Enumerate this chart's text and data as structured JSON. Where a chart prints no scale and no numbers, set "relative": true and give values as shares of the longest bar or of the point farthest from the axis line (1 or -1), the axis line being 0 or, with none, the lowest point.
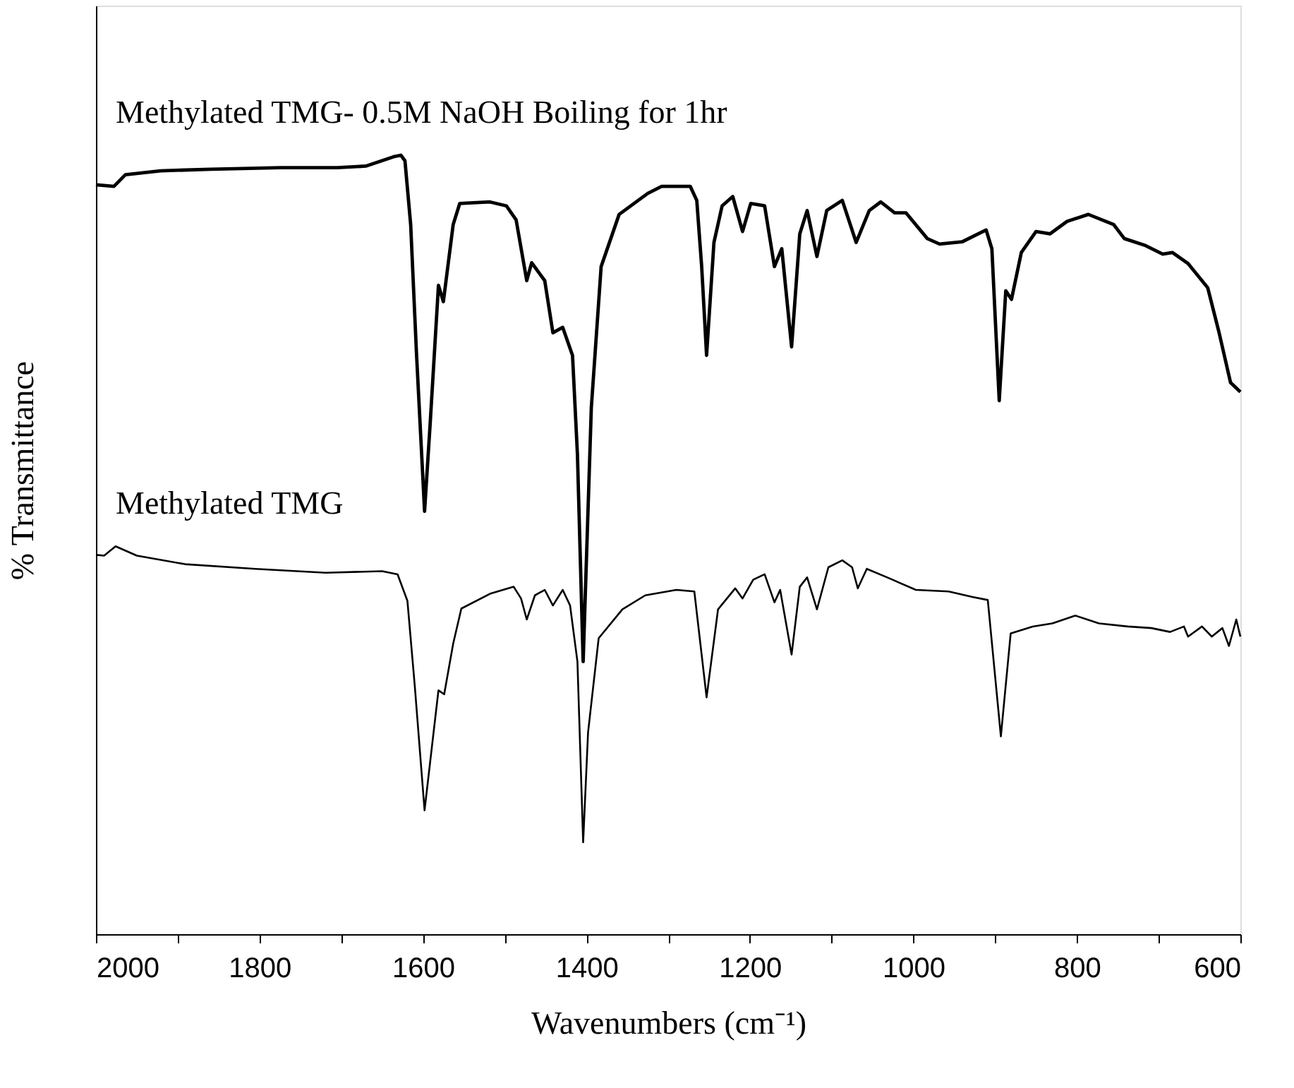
{
  "chart_data": {
    "type": "line",
    "relative": true,
    "xlabel": "Wavenumbers (cm⁻¹)",
    "ylabel": "% Transmittance",
    "xlim": [
      2000,
      600
    ],
    "xticks": [
      2000,
      {
        "value": 1900,
        "label": null
      },
      1800,
      {
        "value": 1700,
        "label": null
      },
      1600,
      {
        "value": 1500,
        "label": null
      },
      1400,
      {
        "value": 1300,
        "label": null
      },
      1200,
      {
        "value": 1100,
        "label": null
      },
      1000,
      {
        "value": 900,
        "label": null
      },
      800,
      {
        "value": 700,
        "label": null
      },
      600
    ],
    "grid": false,
    "tick_labels": "x",
    "line_style": "solid",
    "series": [
      {
        "name": "Methylated TMG- 0.5M NaOH Boiling for 1hr",
        "color": "#000000",
        "x": [
          2000,
          1978,
          1964,
          1921,
          1860,
          1774,
          1705,
          1670,
          1636,
          1627,
          1622,
          1615,
          1608,
          1598,
          1591,
          1581,
          1575,
          1563,
          1555,
          1518,
          1498,
          1486,
          1473,
          1467,
          1451,
          1441,
          1429,
          1417,
          1411,
          1404,
          1394,
          1382,
          1360,
          1325,
          1308,
          1273,
          1265,
          1259,
          1253,
          1244,
          1234,
          1221,
          1209,
          1199,
          1182,
          1170,
          1161,
          1149,
          1139,
          1130,
          1118,
          1106,
          1087,
          1070,
          1054,
          1040,
          1023,
          1009,
          983,
          968,
          940,
          911,
          904,
          895,
          887,
          880,
          868,
          850,
          833,
          812,
          786,
          755,
          742,
          716,
          695,
          683,
          664,
          640,
          626,
          612,
          600
        ],
        "values": [
          0.962,
          0.96,
          0.975,
          0.98,
          0.982,
          0.984,
          0.984,
          0.986,
          0.998,
          1.0,
          0.993,
          0.911,
          0.748,
          0.543,
          0.658,
          0.833,
          0.812,
          0.911,
          0.938,
          0.94,
          0.935,
          0.917,
          0.839,
          0.862,
          0.839,
          0.772,
          0.779,
          0.743,
          0.616,
          0.35,
          0.676,
          0.857,
          0.924,
          0.951,
          0.96,
          0.96,
          0.942,
          0.857,
          0.743,
          0.888,
          0.935,
          0.947,
          0.902,
          0.938,
          0.935,
          0.857,
          0.88,
          0.754,
          0.899,
          0.929,
          0.87,
          0.929,
          0.942,
          0.888,
          0.929,
          0.94,
          0.926,
          0.926,
          0.893,
          0.886,
          0.889,
          0.904,
          0.88,
          0.685,
          0.826,
          0.815,
          0.875,
          0.902,
          0.899,
          0.915,
          0.924,
          0.911,
          0.893,
          0.884,
          0.873,
          0.875,
          0.861,
          0.83,
          0.772,
          0.708,
          0.696
        ]
      },
      {
        "name": "Methylated TMG",
        "color": "#000000",
        "x": [
          2000,
          1990,
          1976,
          1950,
          1891,
          1805,
          1719,
          1650,
          1631,
          1619,
          1610,
          1598,
          1587,
          1581,
          1574,
          1563,
          1553,
          1518,
          1489,
          1480,
          1473,
          1463,
          1451,
          1441,
          1429,
          1420,
          1411,
          1404,
          1398,
          1385,
          1356,
          1328,
          1290,
          1268,
          1253,
          1239,
          1218,
          1209,
          1196,
          1182,
          1170,
          1163,
          1149,
          1139,
          1130,
          1118,
          1104,
          1087,
          1075,
          1068,
          1057,
          1032,
          997,
          957,
          928,
          909,
          893,
          881,
          854,
          830,
          802,
          773,
          738,
          709,
          686,
          669,
          664,
          647,
          635,
          622,
          614,
          605,
          600
        ],
        "values": [
          0.487,
          0.486,
          0.498,
          0.486,
          0.475,
          0.469,
          0.464,
          0.466,
          0.462,
          0.428,
          0.319,
          0.159,
          0.259,
          0.313,
          0.308,
          0.373,
          0.418,
          0.437,
          0.446,
          0.431,
          0.404,
          0.435,
          0.442,
          0.422,
          0.442,
          0.422,
          0.35,
          0.118,
          0.259,
          0.38,
          0.417,
          0.435,
          0.442,
          0.44,
          0.304,
          0.417,
          0.444,
          0.431,
          0.455,
          0.462,
          0.426,
          0.442,
          0.359,
          0.446,
          0.458,
          0.417,
          0.471,
          0.48,
          0.471,
          0.444,
          0.469,
          0.458,
          0.442,
          0.44,
          0.433,
          0.429,
          0.254,
          0.386,
          0.395,
          0.399,
          0.409,
          0.399,
          0.395,
          0.393,
          0.388,
          0.395,
          0.382,
          0.395,
          0.382,
          0.393,
          0.37,
          0.404,
          0.382
        ]
      }
    ]
  }
}
